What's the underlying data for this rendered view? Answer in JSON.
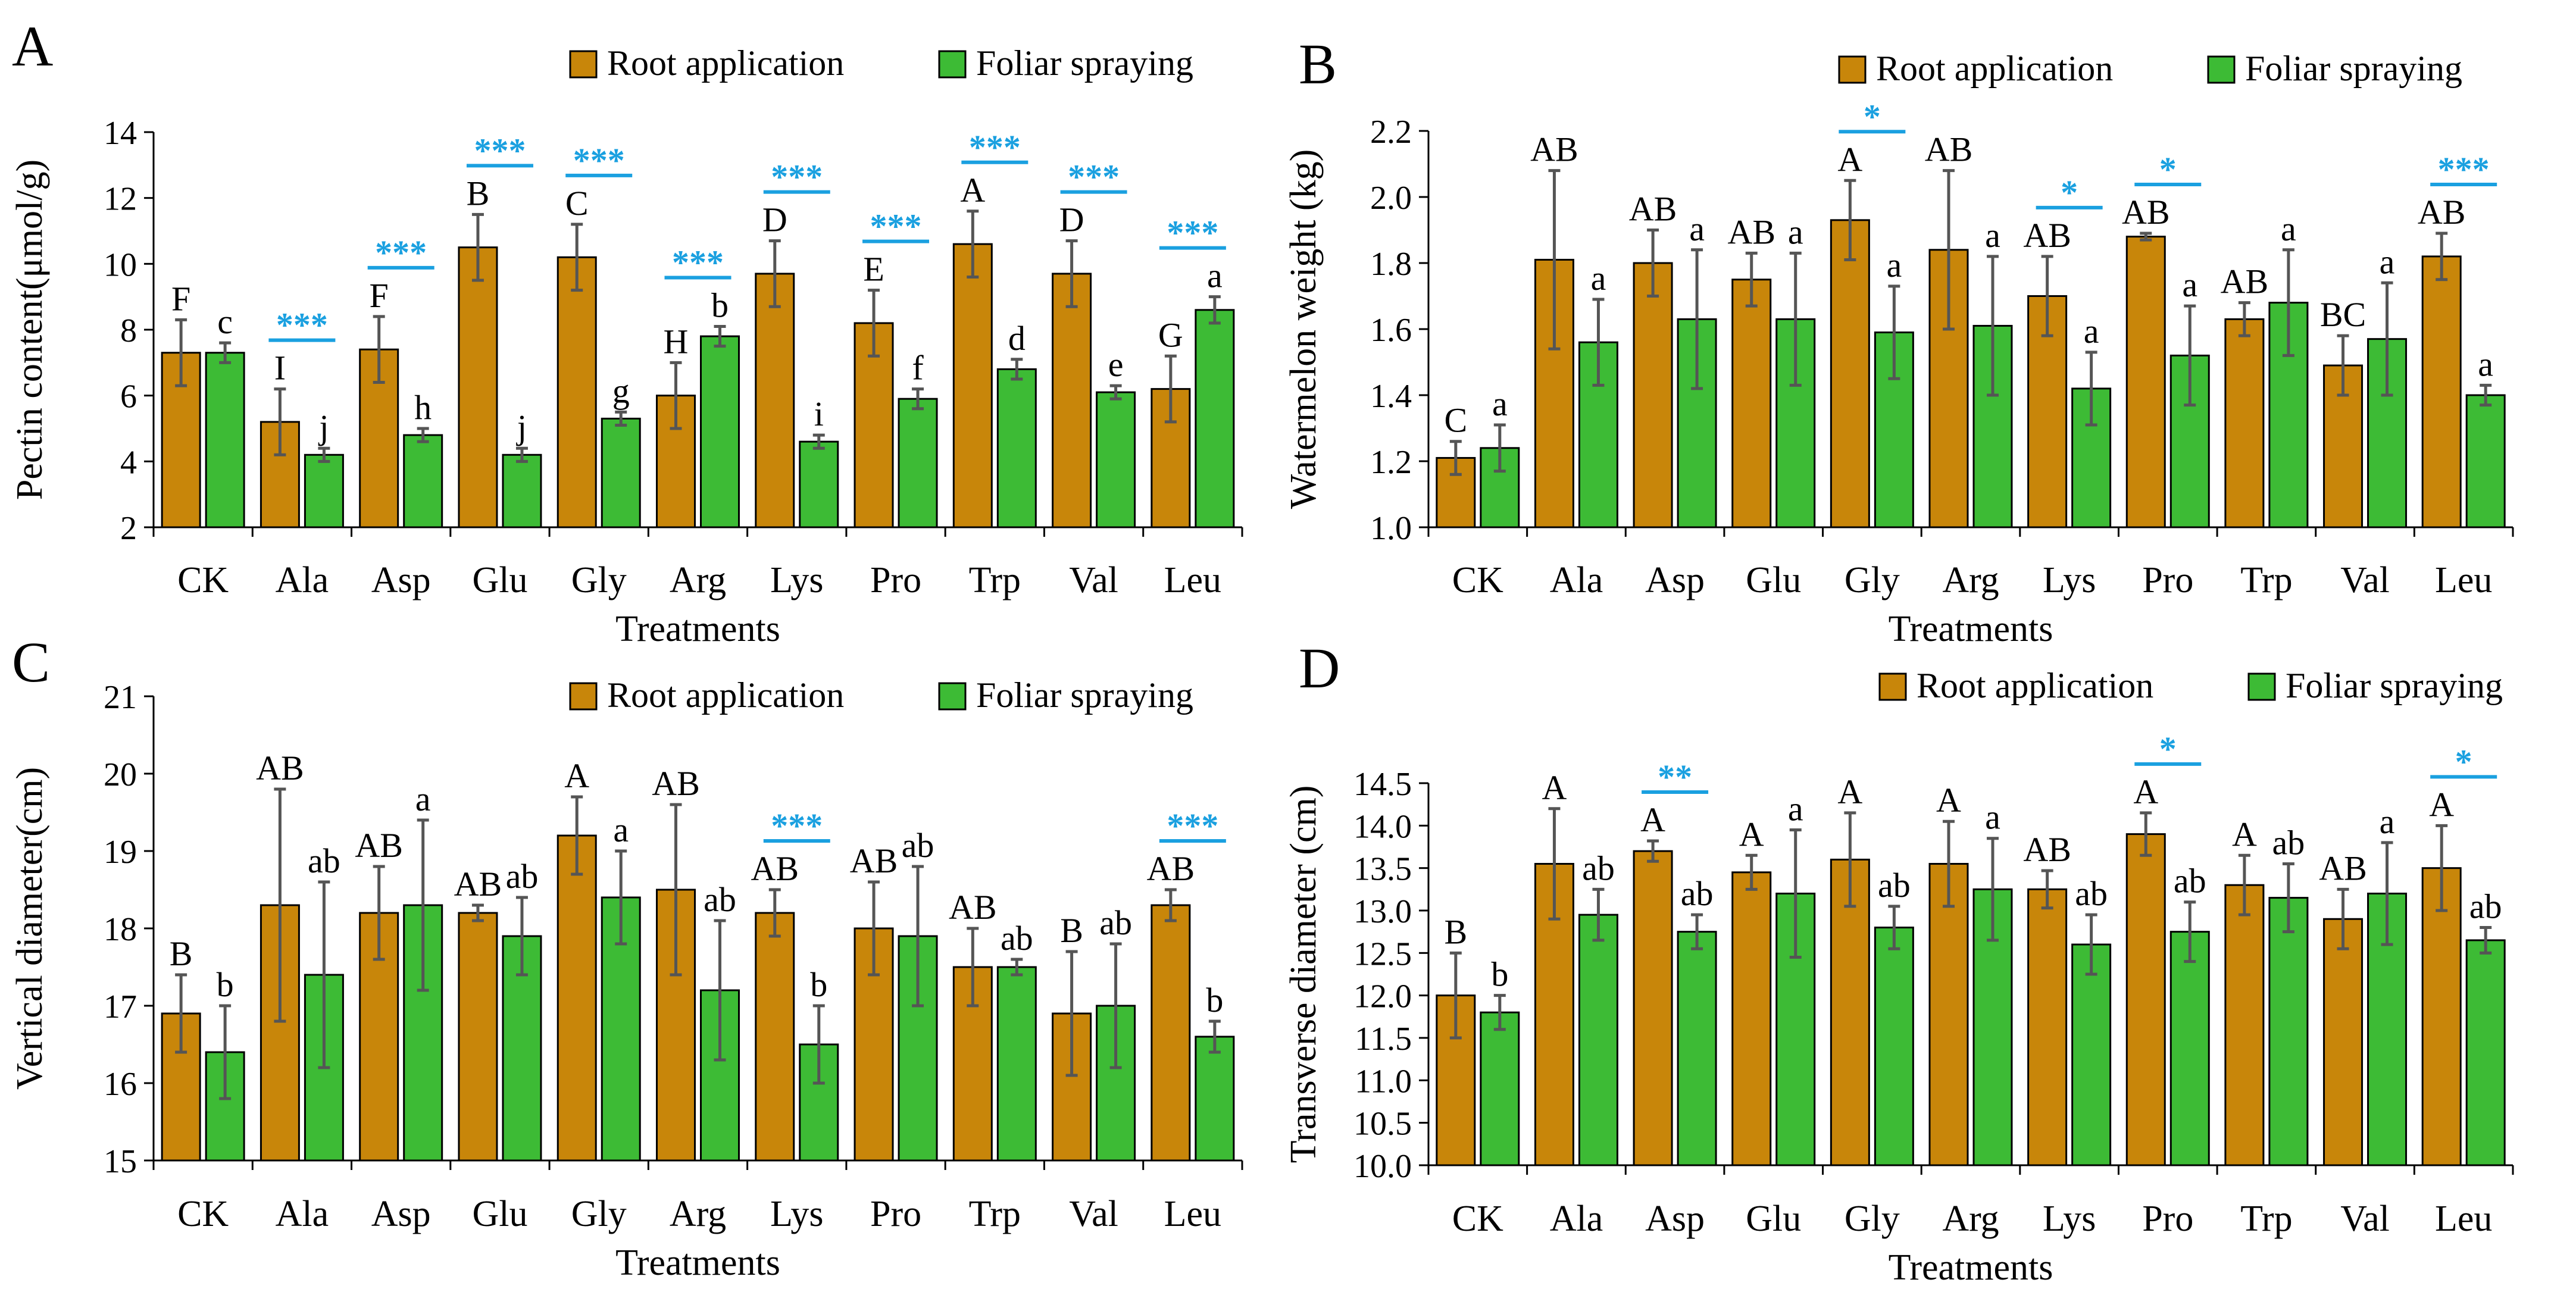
{
  "colors": {
    "root": "#c8860a",
    "foliar": "#3dbb35",
    "significance": "#1aa0e0",
    "error_bar": "#555555"
  },
  "chart_data": [
    {
      "panel": "A",
      "type": "bar",
      "xlabel": "Treatments",
      "ylabel": "Pectin content(μmol/g)",
      "ylim": [
        2,
        14
      ],
      "yticks": [
        2,
        4,
        6,
        8,
        10,
        12,
        14
      ],
      "ytick_labels": [
        "2",
        "4",
        "6",
        "8",
        "10",
        "12",
        "14"
      ],
      "legend_position": "top-right",
      "categories": [
        "CK",
        "Ala",
        "Asp",
        "Glu",
        "Gly",
        "Arg",
        "Lys",
        "Pro",
        "Trp",
        "Val",
        "Leu"
      ],
      "series": [
        {
          "name": "Root application",
          "values": [
            7.3,
            5.2,
            7.4,
            10.5,
            10.2,
            6.0,
            9.7,
            8.2,
            10.6,
            9.7,
            6.2
          ],
          "errors": [
            1.0,
            1.0,
            1.0,
            1.0,
            1.0,
            1.0,
            1.0,
            1.0,
            1.0,
            1.0,
            1.0
          ],
          "letters": [
            "F",
            "I",
            "F",
            "B",
            "C",
            "H",
            "D",
            "E",
            "A",
            "D",
            "G"
          ]
        },
        {
          "name": "Foliar spraying",
          "values": [
            7.3,
            4.2,
            4.8,
            4.2,
            5.3,
            7.8,
            4.6,
            5.9,
            6.8,
            6.1,
            8.6
          ],
          "errors": [
            0.3,
            0.2,
            0.2,
            0.2,
            0.2,
            0.3,
            0.2,
            0.3,
            0.3,
            0.2,
            0.4
          ],
          "letters": [
            "c",
            "j",
            "h",
            "j",
            "g",
            "b",
            "i",
            "f",
            "d",
            "e",
            "a"
          ]
        }
      ],
      "significance": [
        "",
        "***",
        "***",
        "***",
        "***",
        "***",
        "***",
        "***",
        "***",
        "***",
        "***"
      ]
    },
    {
      "panel": "B",
      "type": "bar",
      "xlabel": "Treatments",
      "ylabel": "Watermelon weight (kg)",
      "ylim": [
        1.0,
        2.2
      ],
      "yticks": [
        1.0,
        1.2,
        1.4,
        1.6,
        1.8,
        2.0,
        2.2
      ],
      "ytick_labels": [
        "1.0",
        "1.2",
        "1.4",
        "1.6",
        "1.8",
        "2.0",
        "2.2"
      ],
      "legend_position": "top-right",
      "categories": [
        "CK",
        "Ala",
        "Asp",
        "Glu",
        "Gly",
        "Arg",
        "Lys",
        "Pro",
        "Trp",
        "Val",
        "Leu"
      ],
      "series": [
        {
          "name": "Root application",
          "values": [
            1.21,
            1.81,
            1.8,
            1.75,
            1.93,
            1.84,
            1.7,
            1.88,
            1.63,
            1.49,
            1.82
          ],
          "errors": [
            0.05,
            0.27,
            0.1,
            0.08,
            0.12,
            0.24,
            0.12,
            0.01,
            0.05,
            0.09,
            0.07
          ],
          "letters": [
            "C",
            "AB",
            "AB",
            "AB",
            "A",
            "AB",
            "AB",
            "AB",
            "AB",
            "BC",
            "AB"
          ]
        },
        {
          "name": "Foliar spraying",
          "values": [
            1.24,
            1.56,
            1.63,
            1.63,
            1.59,
            1.61,
            1.42,
            1.52,
            1.68,
            1.57,
            1.4
          ],
          "errors": [
            0.07,
            0.13,
            0.21,
            0.2,
            0.14,
            0.21,
            0.11,
            0.15,
            0.16,
            0.17,
            0.03
          ],
          "letters": [
            "a",
            "a",
            "a",
            "a",
            "a",
            "a",
            "a",
            "a",
            "a",
            "a",
            "a"
          ]
        }
      ],
      "significance": [
        "",
        "",
        "",
        "",
        "*",
        "",
        "*",
        "*",
        "",
        "",
        "***"
      ]
    },
    {
      "panel": "C",
      "type": "bar",
      "xlabel": "Treatments",
      "ylabel": "Vertical diameter(cm)",
      "ylim": [
        15,
        21
      ],
      "yticks": [
        15,
        16,
        17,
        18,
        19,
        20,
        21
      ],
      "ytick_labels": [
        "15",
        "16",
        "17",
        "18",
        "19",
        "20",
        "21"
      ],
      "legend_position": "top-right",
      "categories": [
        "CK",
        "Ala",
        "Asp",
        "Glu",
        "Gly",
        "Arg",
        "Lys",
        "Pro",
        "Trp",
        "Val",
        "Leu"
      ],
      "series": [
        {
          "name": "Root application",
          "values": [
            16.9,
            18.3,
            18.2,
            18.2,
            19.2,
            18.5,
            18.2,
            18.0,
            17.5,
            16.9,
            18.3
          ],
          "errors": [
            0.5,
            1.5,
            0.6,
            0.1,
            0.5,
            1.1,
            0.3,
            0.6,
            0.5,
            0.8,
            0.2
          ],
          "letters": [
            "B",
            "AB",
            "AB",
            "AB",
            "A",
            "AB",
            "AB",
            "AB",
            "AB",
            "B",
            "AB"
          ]
        },
        {
          "name": "Foliar spraying",
          "values": [
            16.4,
            17.4,
            18.3,
            17.9,
            18.4,
            17.2,
            16.5,
            17.9,
            17.5,
            17.0,
            16.6
          ],
          "errors": [
            0.6,
            1.2,
            1.1,
            0.5,
            0.6,
            0.9,
            0.5,
            0.9,
            0.1,
            0.8,
            0.2
          ],
          "letters": [
            "b",
            "ab",
            "a",
            "ab",
            "a",
            "ab",
            "b",
            "ab",
            "ab",
            "ab",
            "b"
          ]
        }
      ],
      "significance": [
        "",
        "",
        "",
        "",
        "",
        "",
        "***",
        "",
        "",
        "",
        "***"
      ]
    },
    {
      "panel": "D",
      "type": "bar",
      "xlabel": "Treatments",
      "ylabel": "Transverse diameter (cm)",
      "ylim": [
        10.0,
        14.5
      ],
      "yticks": [
        10.0,
        10.5,
        11.0,
        11.5,
        12.0,
        12.5,
        13.0,
        13.5,
        14.0,
        14.5
      ],
      "ytick_labels": [
        "10.0",
        "10.5",
        "11.0",
        "11.5",
        "12.0",
        "12.5",
        "13.0",
        "13.5",
        "14.0",
        "14.5"
      ],
      "legend_position": "top-right",
      "categories": [
        "CK",
        "Ala",
        "Asp",
        "Glu",
        "Gly",
        "Arg",
        "Lys",
        "Pro",
        "Trp",
        "Val",
        "Leu"
      ],
      "series": [
        {
          "name": "Root application",
          "values": [
            12.0,
            13.55,
            13.7,
            13.45,
            13.6,
            13.55,
            13.25,
            13.9,
            13.3,
            12.9,
            13.5
          ],
          "errors": [
            0.5,
            0.65,
            0.12,
            0.2,
            0.55,
            0.5,
            0.22,
            0.25,
            0.35,
            0.35,
            0.5
          ],
          "letters": [
            "B",
            "A",
            "A",
            "A",
            "A",
            "A",
            "AB",
            "A",
            "A",
            "AB",
            "A"
          ]
        },
        {
          "name": "Foliar spraying",
          "values": [
            11.8,
            12.95,
            12.75,
            13.2,
            12.8,
            13.25,
            12.6,
            12.75,
            13.15,
            13.2,
            12.65
          ],
          "errors": [
            0.2,
            0.3,
            0.2,
            0.75,
            0.25,
            0.6,
            0.35,
            0.35,
            0.4,
            0.6,
            0.15
          ],
          "letters": [
            "b",
            "ab",
            "ab",
            "a",
            "ab",
            "a",
            "ab",
            "ab",
            "ab",
            "a",
            "ab"
          ]
        }
      ],
      "significance": [
        "",
        "",
        "**",
        "",
        "",
        "",
        "",
        "*",
        "",
        "",
        "*"
      ]
    }
  ]
}
